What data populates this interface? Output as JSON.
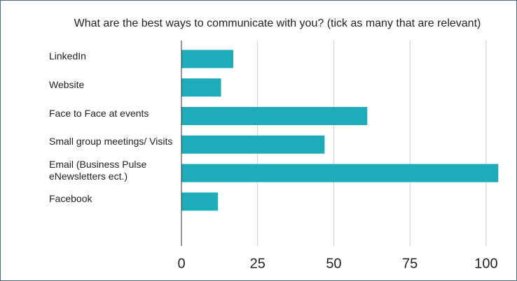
{
  "chart_data": {
    "type": "bar",
    "orientation": "horizontal",
    "title": "What are the best ways to communicate with you? (tick as many that are relevant)",
    "categories": [
      "LinkedIn",
      "Website",
      "Face to Face at events",
      "Small group meetings/ Visits",
      "Email (Business Pulse eNewsletters ect.)",
      "Facebook"
    ],
    "values": [
      17,
      13,
      61,
      47,
      104,
      12
    ],
    "color": "#1eabba",
    "xlim": [
      0,
      106
    ],
    "xticks": [
      0,
      25,
      50,
      75,
      100
    ],
    "grid": true
  }
}
